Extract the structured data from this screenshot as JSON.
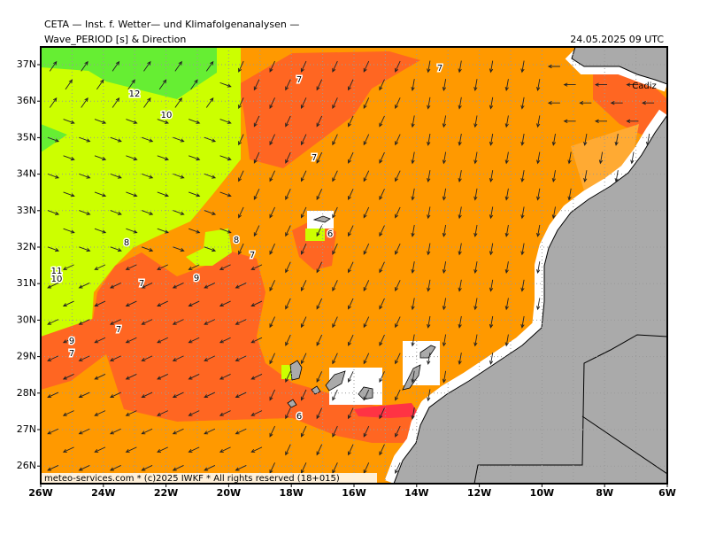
{
  "header": "CETA — Inst. f. Wetter— und Klimafolgenanalysen —",
  "title": "Wave_PERIOD [s] & Direction",
  "date": "24.05.2025 09 UTC",
  "footer": "meteo-services.com * (c)2025 IWKF * All rights reserved (18+015)",
  "place_labels": [
    "Cadiz"
  ],
  "lat_labels": [
    "37N",
    "36N",
    "35N",
    "34N",
    "33N",
    "32N",
    "31N",
    "30N",
    "29N",
    "28N",
    "27N",
    "26N"
  ],
  "lon_labels": [
    "26W",
    "24W",
    "22W",
    "20W",
    "18W",
    "16W",
    "14W",
    "12W",
    "10W",
    "8W",
    "6W"
  ],
  "contour_labels": [
    7,
    7,
    7,
    7,
    7,
    7,
    7,
    12,
    10,
    8,
    8,
    6,
    6,
    9,
    9,
    11,
    10
  ]
}
